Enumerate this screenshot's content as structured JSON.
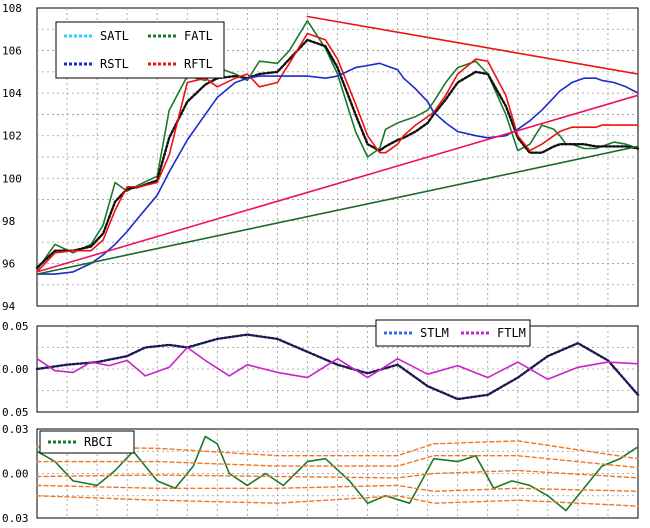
{
  "chart_data": [
    {
      "type": "line",
      "panel": "price",
      "ylim": [
        94,
        108
      ],
      "yticks": [
        "94",
        "96",
        "98",
        "100",
        "102",
        "104",
        "106",
        "108"
      ],
      "xlim": [
        0,
        100
      ],
      "grid": true,
      "legend_position": "top-left",
      "legend": [
        {
          "label": "SATL",
          "color": "#33ccff"
        },
        {
          "label": "FATL",
          "color": "#1a7a2a"
        },
        {
          "label": "RSTL",
          "color": "#1a2acc"
        },
        {
          "label": "RFTL",
          "color": "#ee1111"
        }
      ],
      "series": [
        {
          "name": "FATL",
          "color": "#1a7a2a",
          "x": [
            0,
            3,
            6,
            9,
            11,
            13,
            15,
            17,
            20,
            22,
            25,
            28,
            30,
            33,
            35,
            37,
            40,
            42,
            45,
            48,
            50,
            53,
            55,
            57,
            58,
            60,
            61,
            63,
            65,
            66,
            68,
            70,
            73,
            75,
            78,
            80,
            82,
            84,
            86,
            87,
            88,
            89,
            90,
            91,
            93,
            94,
            96,
            98,
            100
          ],
          "y": [
            95.7,
            96.9,
            96.5,
            96.9,
            97.8,
            99.8,
            99.4,
            99.7,
            100.1,
            103.2,
            104.8,
            104.6,
            105.2,
            104.9,
            104.6,
            105.5,
            105.4,
            106.0,
            107.4,
            106.1,
            104.9,
            102.2,
            101.0,
            101.4,
            102.3,
            102.6,
            102.7,
            102.9,
            103.2,
            103.6,
            104.5,
            105.2,
            105.5,
            104.9,
            103.0,
            101.3,
            101.6,
            102.5,
            102.3,
            102.0,
            101.6,
            101.6,
            101.5,
            101.4,
            101.4,
            101.5,
            101.7,
            101.6,
            101.4
          ]
        },
        {
          "name": "SATL",
          "color": "#101010",
          "x": [
            0,
            3,
            6,
            9,
            11,
            13,
            15,
            17,
            20,
            22,
            25,
            28,
            30,
            33,
            35,
            37,
            40,
            42,
            45,
            48,
            50,
            53,
            55,
            57,
            58,
            60,
            61,
            63,
            65,
            66,
            68,
            70,
            73,
            75,
            78,
            80,
            82,
            84,
            86,
            87,
            88,
            89,
            90,
            91,
            93,
            94,
            96,
            98,
            100
          ],
          "y": [
            95.8,
            96.6,
            96.6,
            96.8,
            97.4,
            98.9,
            99.5,
            99.6,
            99.9,
            101.9,
            103.6,
            104.4,
            104.7,
            104.8,
            104.7,
            104.9,
            105.0,
            105.6,
            106.5,
            106.2,
            105.2,
            103.0,
            101.6,
            101.3,
            101.5,
            101.8,
            101.9,
            102.2,
            102.6,
            103.0,
            103.7,
            104.5,
            105.0,
            104.9,
            103.4,
            101.9,
            101.2,
            101.2,
            101.5,
            101.6,
            101.6,
            101.6,
            101.6,
            101.6,
            101.5,
            101.5,
            101.5,
            101.5,
            101.4
          ]
        },
        {
          "name": "RFTL",
          "color": "#ee1111",
          "x": [
            0,
            3,
            6,
            9,
            11,
            13,
            15,
            17,
            20,
            22,
            25,
            28,
            30,
            33,
            35,
            37,
            40,
            42,
            45,
            48,
            50,
            53,
            55,
            57,
            58,
            60,
            61,
            63,
            65,
            66,
            68,
            70,
            73,
            75,
            78,
            80,
            82,
            84,
            86,
            87,
            88,
            89,
            90,
            91,
            93,
            94,
            96,
            98,
            100
          ],
          "y": [
            95.6,
            96.5,
            96.6,
            96.6,
            97.1,
            98.5,
            99.6,
            99.6,
            99.8,
            101.1,
            104.5,
            104.7,
            104.3,
            104.7,
            104.9,
            104.3,
            104.5,
            105.4,
            106.8,
            106.5,
            105.6,
            103.5,
            102.0,
            101.2,
            101.2,
            101.6,
            102.0,
            102.5,
            102.9,
            103.1,
            103.9,
            104.9,
            105.6,
            105.5,
            103.9,
            102.0,
            101.3,
            101.6,
            102.0,
            102.2,
            102.3,
            102.4,
            102.4,
            102.4,
            102.4,
            102.5,
            102.5,
            102.5,
            102.5
          ]
        },
        {
          "name": "RSTL",
          "color": "#1a2acc",
          "x": [
            0,
            3,
            6,
            9,
            11,
            13,
            15,
            17,
            20,
            22,
            25,
            28,
            30,
            33,
            35,
            37,
            40,
            42,
            45,
            48,
            50,
            53,
            55,
            57,
            58,
            60,
            61,
            63,
            65,
            66,
            68,
            70,
            73,
            75,
            78,
            80,
            82,
            84,
            86,
            87,
            88,
            89,
            90,
            91,
            93,
            94,
            96,
            98,
            100
          ],
          "y": [
            95.5,
            95.5,
            95.6,
            96.0,
            96.4,
            96.9,
            97.5,
            98.2,
            99.2,
            100.3,
            101.8,
            103.0,
            103.8,
            104.5,
            104.7,
            104.8,
            104.8,
            104.8,
            104.8,
            104.7,
            104.8,
            105.2,
            105.3,
            105.4,
            105.3,
            105.1,
            104.7,
            104.2,
            103.6,
            103.1,
            102.6,
            102.2,
            102.0,
            101.9,
            102.0,
            102.3,
            102.7,
            103.2,
            103.8,
            104.1,
            104.3,
            104.5,
            104.6,
            104.7,
            104.7,
            104.6,
            104.5,
            104.3,
            104.0
          ]
        },
        {
          "name": "",
          "color": "#ee1155",
          "x": [
            0,
            100
          ],
          "y": [
            95.6,
            103.9
          ]
        },
        {
          "name": "",
          "color": "#1a6a2a",
          "x": [
            0,
            100
          ],
          "y": [
            95.5,
            101.5
          ]
        },
        {
          "name": "",
          "color": "#ee1111",
          "x": [
            45,
            100
          ],
          "y": [
            107.6,
            104.9
          ]
        }
      ]
    },
    {
      "type": "line",
      "panel": "stlm_ftlm",
      "ylim": [
        -0.05,
        0.05
      ],
      "yticks": [
        "0.05",
        "0.00",
        "0.05"
      ],
      "xlim": [
        0,
        100
      ],
      "grid": true,
      "legend_position": "top-right",
      "legend": [
        {
          "label": "STLM",
          "color": "#3366ff"
        },
        {
          "label": "FTLM",
          "color": "#cc22cc"
        }
      ],
      "series": [
        {
          "name": "STLM",
          "color": "#1a1a50",
          "x": [
            0,
            5,
            10,
            15,
            18,
            22,
            25,
            30,
            35,
            40,
            45,
            50,
            55,
            60,
            65,
            70,
            75,
            80,
            85,
            90,
            95,
            100
          ],
          "y": [
            0.0,
            0.005,
            0.008,
            0.015,
            0.025,
            0.028,
            0.025,
            0.035,
            0.04,
            0.035,
            0.02,
            0.005,
            -0.005,
            0.005,
            -0.02,
            -0.035,
            -0.03,
            -0.01,
            0.015,
            0.03,
            0.01,
            -0.03
          ]
        },
        {
          "name": "FTLM",
          "color": "#cc22cc",
          "x": [
            0,
            3,
            6,
            9,
            12,
            15,
            18,
            22,
            25,
            28,
            32,
            35,
            40,
            45,
            50,
            55,
            60,
            65,
            70,
            75,
            80,
            85,
            90,
            95,
            100
          ],
          "y": [
            0.012,
            -0.002,
            -0.004,
            0.008,
            0.004,
            0.01,
            -0.008,
            0.002,
            0.025,
            0.01,
            -0.008,
            0.005,
            -0.004,
            -0.01,
            0.012,
            -0.01,
            0.012,
            -0.006,
            0.004,
            -0.01,
            0.008,
            -0.012,
            0.002,
            0.008,
            0.006
          ]
        }
      ]
    },
    {
      "type": "line",
      "panel": "rbci",
      "ylim": [
        -0.03,
        0.03
      ],
      "yticks": [
        "0.03",
        "0.00",
        "0.03"
      ],
      "xlim": [
        0,
        100
      ],
      "grid": true,
      "legend_position": "top-left",
      "legend": [
        {
          "label": "RBCI",
          "color": "#1a7a2a"
        }
      ],
      "series": [
        {
          "name": "RBCI",
          "color": "#1a7a2a",
          "x": [
            0,
            3,
            6,
            10,
            13,
            16,
            20,
            23,
            26,
            28,
            30,
            32,
            35,
            38,
            41,
            45,
            48,
            52,
            55,
            58,
            62,
            66,
            70,
            73,
            76,
            79,
            82,
            85,
            88,
            91,
            94,
            97,
            100
          ],
          "y": [
            0.015,
            0.008,
            -0.005,
            -0.008,
            0.002,
            0.015,
            -0.005,
            -0.01,
            0.005,
            0.025,
            0.02,
            0.0,
            -0.008,
            0.0,
            -0.008,
            0.008,
            0.01,
            -0.005,
            -0.02,
            -0.015,
            -0.02,
            0.01,
            0.008,
            0.012,
            -0.01,
            -0.005,
            -0.008,
            -0.015,
            -0.025,
            -0.01,
            0.005,
            0.01,
            0.018
          ]
        },
        {
          "name": "",
          "color": "#ee7722",
          "x": [
            0,
            20,
            40,
            60,
            66,
            80,
            100
          ],
          "y": [
            0.018,
            0.017,
            0.012,
            0.012,
            0.02,
            0.022,
            0.01
          ]
        },
        {
          "name": "",
          "color": "#ee7722",
          "x": [
            0,
            20,
            40,
            60,
            66,
            80,
            100
          ],
          "y": [
            0.008,
            0.008,
            0.005,
            0.005,
            0.012,
            0.012,
            0.004
          ]
        },
        {
          "name": "",
          "color": "#ee7722",
          "x": [
            0,
            20,
            40,
            60,
            66,
            80,
            100
          ],
          "y": [
            -0.002,
            -0.001,
            -0.002,
            -0.003,
            0.0,
            0.002,
            -0.003
          ]
        },
        {
          "name": "",
          "color": "#ee7722",
          "x": [
            0,
            20,
            40,
            60,
            66,
            80,
            100
          ],
          "y": [
            -0.008,
            -0.01,
            -0.01,
            -0.008,
            -0.012,
            -0.01,
            -0.012
          ]
        },
        {
          "name": "",
          "color": "#ee7722",
          "x": [
            0,
            20,
            40,
            60,
            66,
            80,
            100
          ],
          "y": [
            -0.015,
            -0.018,
            -0.02,
            -0.015,
            -0.02,
            -0.018,
            -0.022
          ]
        }
      ]
    }
  ]
}
